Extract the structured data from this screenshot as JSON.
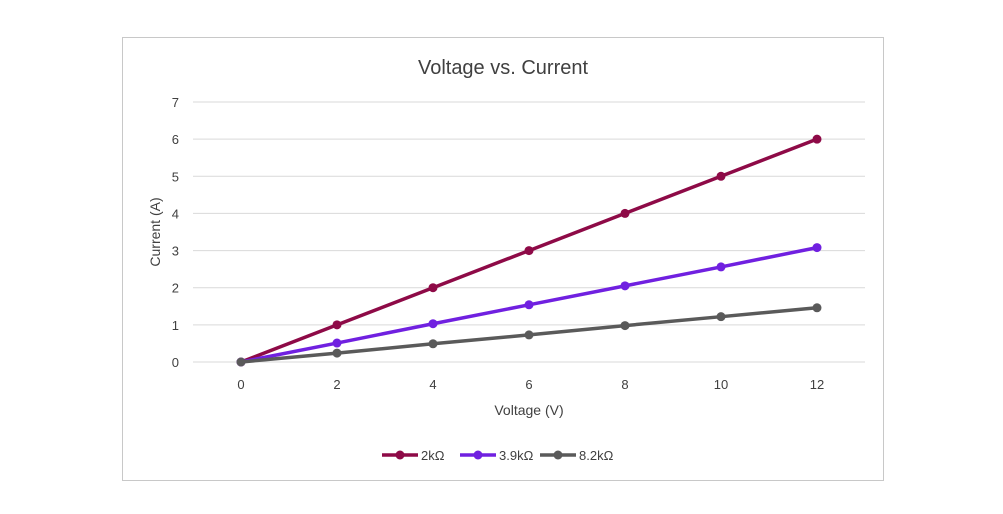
{
  "chart_data": {
    "type": "line",
    "title": "Voltage vs. Current",
    "xlabel": "Voltage (V)",
    "ylabel": "Current (A)",
    "x": [
      0,
      2,
      4,
      6,
      8,
      10,
      12
    ],
    "xticks": [
      "0",
      "2",
      "4",
      "6",
      "8",
      "10",
      "12"
    ],
    "yticks": [
      "0",
      "1",
      "2",
      "3",
      "4",
      "5",
      "6",
      "7"
    ],
    "ylim": [
      0,
      7
    ],
    "grid": true,
    "legend_position": "bottom",
    "series": [
      {
        "name": "2kΩ",
        "color": "#8e0a47",
        "values": [
          0,
          1,
          2,
          3,
          4,
          5,
          6
        ]
      },
      {
        "name": "3.9kΩ",
        "color": "#7020e0",
        "values": [
          0,
          0.51,
          1.03,
          1.54,
          2.05,
          2.56,
          3.08
        ]
      },
      {
        "name": "8.2kΩ",
        "color": "#5a5a5a",
        "values": [
          0,
          0.24,
          0.49,
          0.73,
          0.98,
          1.22,
          1.46
        ]
      }
    ]
  }
}
